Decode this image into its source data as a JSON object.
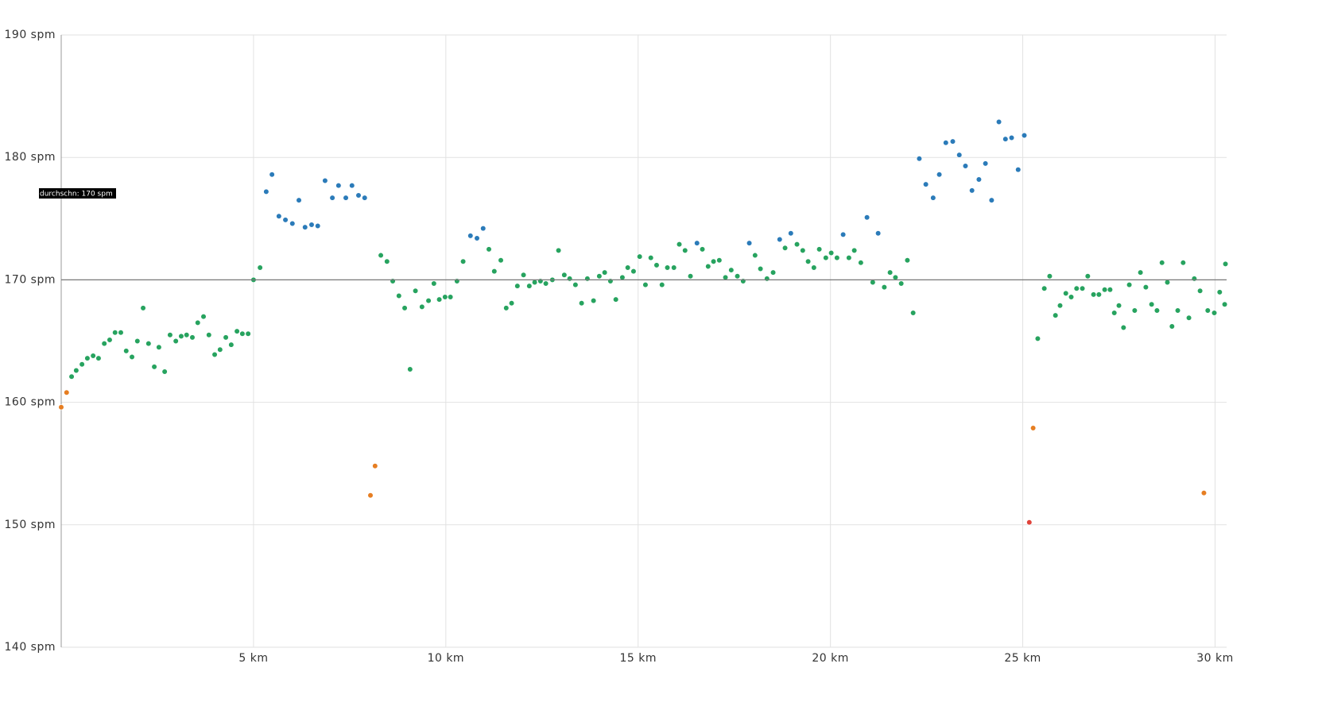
{
  "chart_data": {
    "type": "scatter",
    "xlim": [
      0,
      30.3
    ],
    "ylim": [
      140,
      190
    ],
    "xticks": [
      {
        "value": 5,
        "label": "5 km"
      },
      {
        "value": 10,
        "label": "10 km"
      },
      {
        "value": 15,
        "label": "15 km"
      },
      {
        "value": 20,
        "label": "20 km"
      },
      {
        "value": 25,
        "label": "25 km"
      },
      {
        "value": 30,
        "label": "30 km"
      }
    ],
    "yticks": [
      {
        "value": 140,
        "label": "140 spm"
      },
      {
        "value": 150,
        "label": "150 spm"
      },
      {
        "value": 160,
        "label": "160 spm"
      },
      {
        "value": 170,
        "label": "170 spm"
      },
      {
        "value": 180,
        "label": "180 spm"
      },
      {
        "value": 190,
        "label": "190 spm"
      }
    ],
    "grid": true,
    "average_line": {
      "value": 170,
      "label": "durchschn: 170 spm"
    },
    "series": [
      {
        "color": "#27a35f",
        "x": [
          0.27,
          0.39,
          0.54,
          0.68,
          0.83,
          0.97,
          1.12,
          1.26,
          1.4,
          1.55,
          1.69,
          1.84,
          1.98,
          2.13,
          2.27,
          2.42,
          2.54,
          2.69,
          2.83,
          2.98,
          3.12,
          3.26,
          3.41,
          3.55,
          3.7,
          3.84,
          3.99,
          4.13,
          4.28,
          4.42,
          4.57,
          4.71,
          4.86,
          5.0,
          5.17,
          8.31,
          8.47,
          8.62,
          8.78,
          8.93,
          9.07,
          9.21,
          9.38,
          9.55,
          9.69,
          9.83,
          9.98,
          10.12,
          10.29,
          10.45,
          11.12,
          11.26,
          11.43,
          11.57,
          11.71,
          11.86,
          12.02,
          12.17,
          12.31,
          12.46,
          12.6,
          12.77,
          12.93,
          13.08,
          13.22,
          13.37,
          13.53,
          13.68,
          13.84,
          13.99,
          14.13,
          14.28,
          14.42,
          14.59,
          14.73,
          14.88,
          15.04,
          15.19,
          15.33,
          15.48,
          15.62,
          15.76,
          15.93,
          16.07,
          16.22,
          16.36,
          16.67,
          16.82,
          16.96,
          17.11,
          17.27,
          17.42,
          17.58,
          17.73,
          18.04,
          18.18,
          18.35,
          18.51,
          18.82,
          19.13,
          19.28,
          19.42,
          19.57,
          19.71,
          19.88,
          20.02,
          20.17,
          20.48,
          20.62,
          20.79,
          21.1,
          21.4,
          21.55,
          21.69,
          21.84,
          22.0,
          22.15,
          25.39,
          25.56,
          25.7,
          25.85,
          25.97,
          26.12,
          26.26,
          26.4,
          26.55,
          26.69,
          26.84,
          26.98,
          27.13,
          27.27,
          27.38,
          27.5,
          27.62,
          27.77,
          27.91,
          28.06,
          28.2,
          28.35,
          28.49,
          28.62,
          28.76,
          28.88,
          29.03,
          29.17,
          29.32,
          29.46,
          29.61,
          29.81,
          29.98,
          30.12,
          30.25,
          30.27
        ],
        "values": [
          162.1,
          162.6,
          163.1,
          163.6,
          163.8,
          163.6,
          164.8,
          165.1,
          165.7,
          165.7,
          164.2,
          163.7,
          165.0,
          167.7,
          164.8,
          162.9,
          164.5,
          162.5,
          165.5,
          165.0,
          165.4,
          165.5,
          165.3,
          166.5,
          167.0,
          165.5,
          163.9,
          164.3,
          165.3,
          164.7,
          165.8,
          165.6,
          165.6,
          170.0,
          171.0,
          172.0,
          171.5,
          169.9,
          168.7,
          167.7,
          162.7,
          169.1,
          167.8,
          168.3,
          169.7,
          168.4,
          168.6,
          168.6,
          169.9,
          171.5,
          172.5,
          170.7,
          171.6,
          167.7,
          168.1,
          169.5,
          170.4,
          169.5,
          169.8,
          169.9,
          169.7,
          170.0,
          172.4,
          170.4,
          170.1,
          169.6,
          168.1,
          170.1,
          168.3,
          170.3,
          170.6,
          169.9,
          168.4,
          170.2,
          171.0,
          170.7,
          171.9,
          169.6,
          171.8,
          171.2,
          169.6,
          171.0,
          171.0,
          172.9,
          172.4,
          170.3,
          172.5,
          171.1,
          171.5,
          171.6,
          170.2,
          170.8,
          170.3,
          169.9,
          172.0,
          170.9,
          170.1,
          170.6,
          172.6,
          172.9,
          172.4,
          171.5,
          171.0,
          172.5,
          171.8,
          172.2,
          171.8,
          171.8,
          172.4,
          171.4,
          169.8,
          169.4,
          170.6,
          170.2,
          169.7,
          171.6,
          167.3,
          165.2,
          169.3,
          170.3,
          167.1,
          167.9,
          168.9,
          168.6,
          169.3,
          169.3,
          170.3,
          168.8,
          168.8,
          169.2,
          169.2,
          167.3,
          167.9,
          166.1,
          169.6,
          167.5,
          170.6,
          169.4,
          168.0,
          167.5,
          171.4,
          169.8,
          166.2,
          167.5,
          171.4,
          166.9,
          170.1,
          169.1,
          167.5,
          167.3,
          169.0,
          168.0,
          171.3
        ]
      },
      {
        "color": "#2b7bb9",
        "x": [
          5.33,
          5.48,
          5.66,
          5.83,
          6.01,
          6.18,
          6.34,
          6.51,
          6.67,
          6.86,
          7.05,
          7.21,
          7.4,
          7.56,
          7.73,
          7.89,
          10.64,
          10.81,
          10.97,
          16.53,
          17.89,
          18.68,
          18.97,
          20.33,
          20.95,
          21.24,
          22.31,
          22.48,
          22.67,
          22.83,
          23.0,
          23.18,
          23.35,
          23.51,
          23.68,
          23.86,
          24.03,
          24.19,
          24.38,
          24.55,
          24.71,
          24.88,
          25.04
        ],
        "values": [
          177.2,
          178.6,
          175.2,
          174.9,
          174.6,
          176.5,
          174.3,
          174.5,
          174.4,
          178.1,
          176.7,
          177.7,
          176.7,
          177.7,
          176.9,
          176.7,
          173.6,
          173.4,
          174.2,
          173.0,
          173.0,
          173.3,
          173.8,
          173.7,
          175.1,
          173.8,
          179.9,
          177.8,
          176.7,
          178.6,
          181.2,
          181.3,
          180.2,
          179.3,
          177.3,
          178.2,
          179.5,
          176.5,
          182.9,
          181.5,
          181.6,
          179.0,
          181.8
        ]
      },
      {
        "color": "#e67e22",
        "x": [
          0.0,
          0.14,
          8.04,
          8.16,
          25.27,
          29.71
        ],
        "values": [
          159.6,
          160.8,
          152.4,
          154.8,
          157.9,
          152.6
        ]
      },
      {
        "color": "#e0433a",
        "x": [
          25.17
        ],
        "values": [
          150.2
        ]
      }
    ]
  }
}
